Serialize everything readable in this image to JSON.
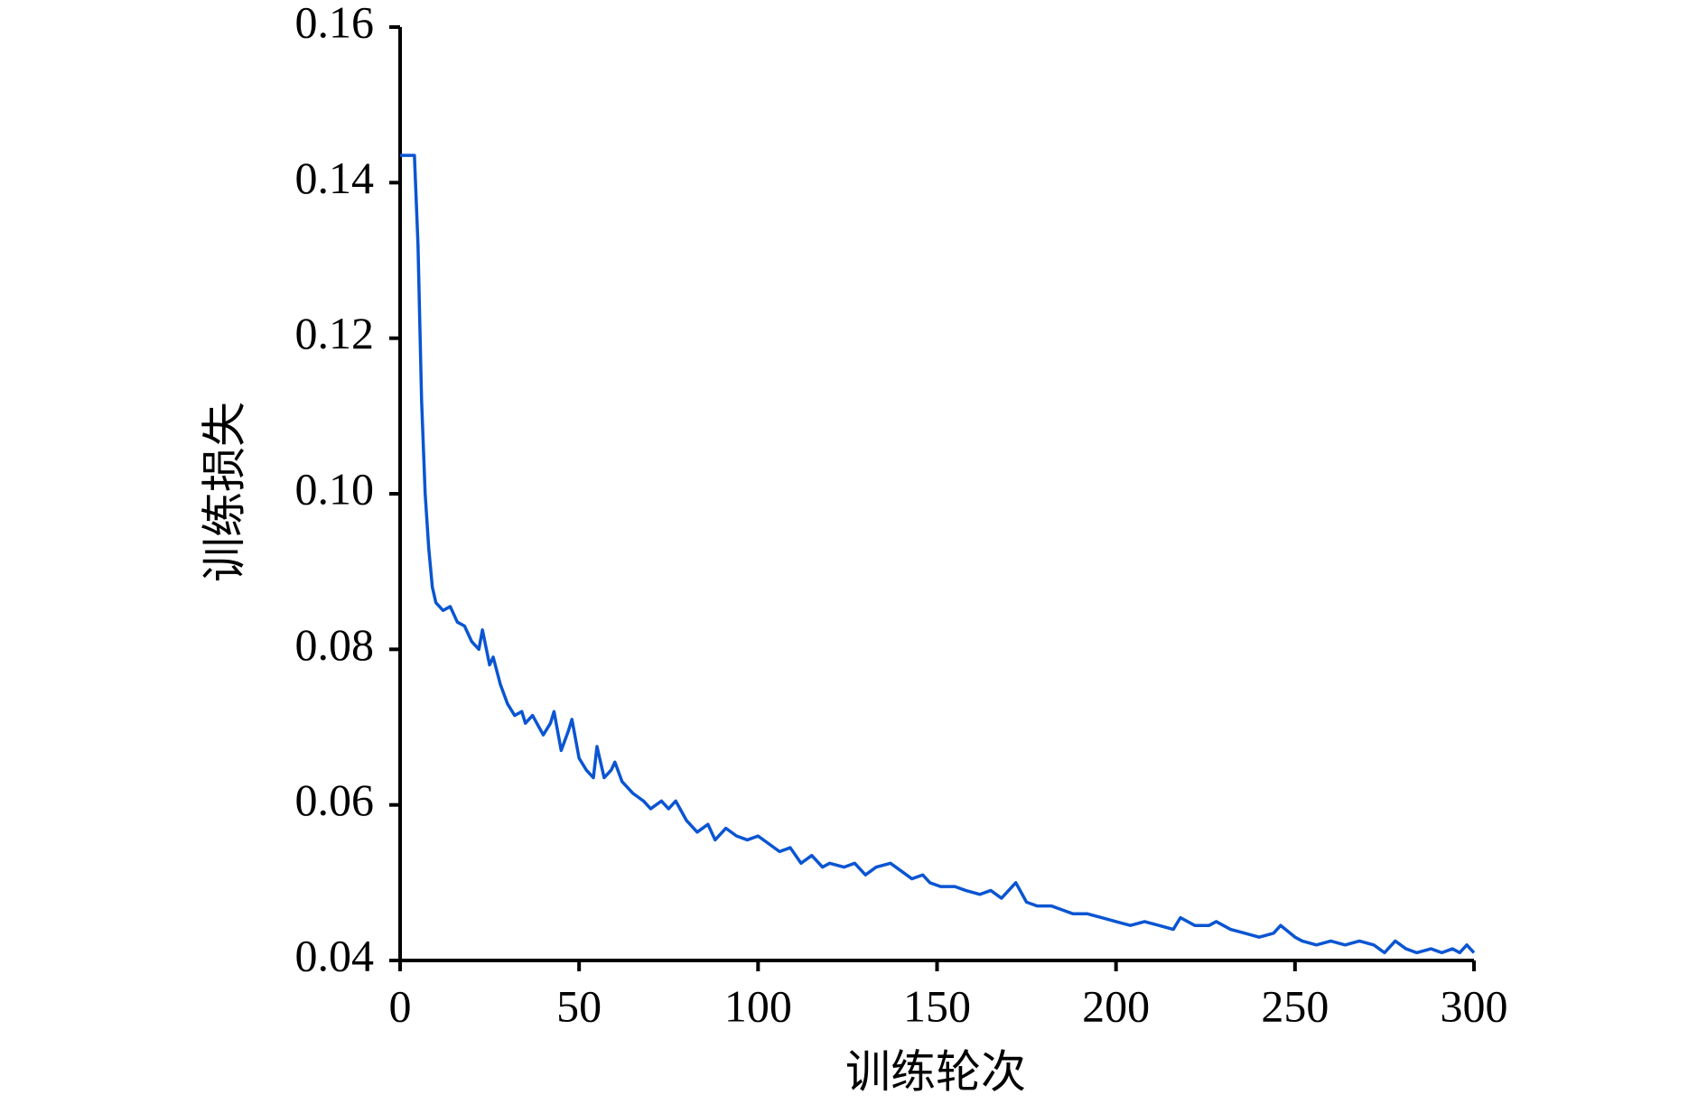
{
  "chart_data": {
    "type": "line",
    "x_label": "训练轮次",
    "y_label": "训练损失",
    "xlim": [
      0,
      300
    ],
    "xticks": [
      0,
      50,
      100,
      150,
      200,
      250,
      300
    ],
    "ylim": [
      0.04,
      0.16
    ],
    "yticks": [
      0.04,
      0.06,
      0.08,
      {
        "value": 0.1,
        "label": "0.10"
      },
      0.12,
      0.14,
      0.16
    ],
    "x": [
      0,
      1,
      2,
      3,
      4,
      5,
      6,
      7,
      8,
      9,
      10,
      12,
      14,
      16,
      18,
      20,
      22,
      23,
      25,
      26,
      28,
      30,
      32,
      34,
      35,
      37,
      40,
      42,
      43,
      45,
      47,
      48,
      50,
      52,
      54,
      55,
      57,
      59,
      60,
      62,
      65,
      68,
      70,
      73,
      75,
      77,
      80,
      83,
      86,
      88,
      91,
      94,
      97,
      100,
      103,
      106,
      109,
      112,
      115,
      118,
      120,
      124,
      127,
      130,
      133,
      137,
      140,
      143,
      146,
      148,
      151,
      155,
      158,
      162,
      165,
      168,
      172,
      175,
      178,
      182,
      185,
      188,
      192,
      196,
      200,
      204,
      208,
      212,
      216,
      218,
      222,
      226,
      228,
      232,
      236,
      240,
      244,
      246,
      250,
      252,
      256,
      260,
      264,
      268,
      272,
      275,
      278,
      281,
      284,
      288,
      291,
      294,
      296,
      298,
      300
    ],
    "series": [
      {
        "name": "训练损失",
        "color": "#0a55d2",
        "values": [
          0.1435,
          0.1435,
          0.1435,
          0.1435,
          0.1435,
          0.132,
          0.112,
          0.1,
          0.093,
          0.088,
          0.086,
          0.085,
          0.0855,
          0.0835,
          0.083,
          0.081,
          0.08,
          0.0825,
          0.078,
          0.079,
          0.0755,
          0.073,
          0.0715,
          0.072,
          0.0705,
          0.0715,
          0.069,
          0.0705,
          0.072,
          0.067,
          0.0695,
          0.071,
          0.066,
          0.0645,
          0.0635,
          0.0675,
          0.0635,
          0.0645,
          0.0655,
          0.063,
          0.0615,
          0.0605,
          0.0595,
          0.0605,
          0.0595,
          0.0605,
          0.058,
          0.0565,
          0.0575,
          0.0555,
          0.057,
          0.056,
          0.0555,
          0.056,
          0.055,
          0.054,
          0.0545,
          0.0525,
          0.0535,
          0.052,
          0.0525,
          0.052,
          0.0525,
          0.051,
          0.052,
          0.0525,
          0.0515,
          0.0505,
          0.051,
          0.05,
          0.0495,
          0.0495,
          0.049,
          0.0485,
          0.049,
          0.048,
          0.05,
          0.0475,
          0.047,
          0.047,
          0.0465,
          0.046,
          0.046,
          0.0455,
          0.045,
          0.0445,
          0.045,
          0.0445,
          0.044,
          0.0455,
          0.0445,
          0.0445,
          0.045,
          0.044,
          0.0435,
          0.043,
          0.0435,
          0.0445,
          0.043,
          0.0425,
          0.042,
          0.0425,
          0.042,
          0.0425,
          0.042,
          0.041,
          0.0425,
          0.0415,
          0.041,
          0.0415,
          0.041,
          0.0415,
          0.041,
          0.042,
          0.041
        ]
      }
    ]
  }
}
